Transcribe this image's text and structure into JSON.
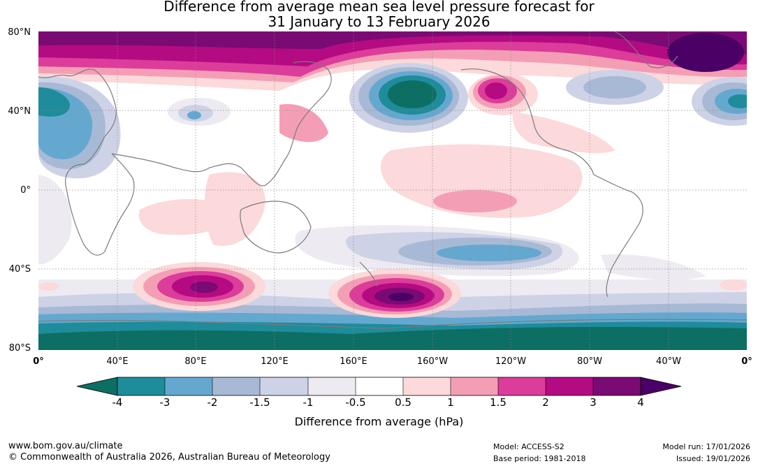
{
  "title": {
    "line1": "Difference from average mean sea level pressure forecast for",
    "line2": "31 January to 13 February 2026"
  },
  "map": {
    "lat_labels": [
      "80°N",
      "40°N",
      "0°",
      "40°S",
      "80°S"
    ],
    "lon_labels": [
      "0°",
      "40°E",
      "80°E",
      "120°E",
      "160°E",
      "160°W",
      "120°W",
      "80°W",
      "40°W",
      "0°"
    ],
    "lat_range": [
      -80,
      80
    ],
    "lon_range": [
      0,
      360
    ],
    "projection": "equirectangular",
    "gridlines": "dotted"
  },
  "colorbar": {
    "ticks": [
      "-4",
      "-3",
      "-2",
      "-1.5",
      "-1",
      "-0.5",
      "0.5",
      "1",
      "1.5",
      "2",
      "3",
      "4"
    ],
    "colors": [
      "#0d6e64",
      "#1e8c9b",
      "#64a8d0",
      "#a8b9d6",
      "#ced2e6",
      "#eeeaf2",
      "#ffffff",
      "#fcd9da",
      "#f49eb5",
      "#dc3c9a",
      "#b40a82",
      "#7a0a74",
      "#4a0064"
    ],
    "extend": "both",
    "label": "Difference from average (hPa)"
  },
  "footer": {
    "url": "www.bom.gov.au/climate",
    "copyright": "© Commonwealth of Australia 2026, Australian Bureau of Meteorology",
    "model": "Model: ACCESS-S2",
    "base_period": "Base period: 1981-2018",
    "model_run": "Model run: 17/01/2026",
    "issued": "Issued: 19/01/2026"
  }
}
